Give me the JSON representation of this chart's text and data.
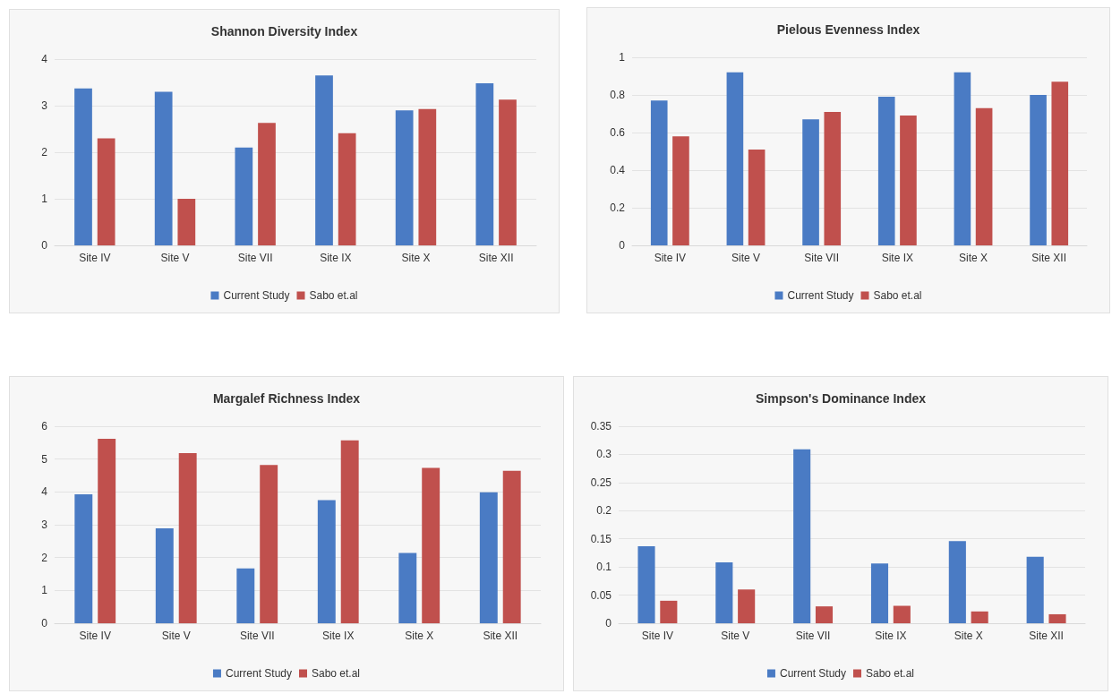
{
  "chart_data": [
    {
      "type": "bar",
      "title": "Shannon Diversity Index",
      "categories": [
        "Site IV",
        "Site V",
        "Site VII",
        "Site IX",
        "Site X",
        "Site XII"
      ],
      "series": [
        {
          "name": "Current Study",
          "color": "#4a7bc4",
          "values": [
            3.37,
            3.3,
            2.1,
            3.65,
            2.9,
            3.48
          ]
        },
        {
          "name": "Sabo et.al",
          "color": "#c0504d",
          "values": [
            2.3,
            1.0,
            2.63,
            2.41,
            2.93,
            3.13
          ]
        }
      ],
      "ylim": [
        0,
        4
      ],
      "yticks": [
        0,
        1,
        2,
        3,
        4
      ],
      "grid": "y",
      "legend": "bottom"
    },
    {
      "type": "bar",
      "title": "Pielous Evenness Index",
      "categories": [
        "Site IV",
        "Site V",
        "Site VII",
        "Site IX",
        "Site X",
        "Site XII"
      ],
      "series": [
        {
          "name": "Current Study",
          "color": "#4a7bc4",
          "values": [
            0.77,
            0.92,
            0.67,
            0.79,
            0.92,
            0.8
          ]
        },
        {
          "name": "Sabo et.al",
          "color": "#c0504d",
          "values": [
            0.58,
            0.51,
            0.71,
            0.69,
            0.73,
            0.87
          ]
        }
      ],
      "ylim": [
        0,
        1
      ],
      "yticks": [
        0,
        0.2,
        0.4,
        0.6,
        0.8,
        1
      ],
      "grid": "y",
      "legend": "bottom"
    },
    {
      "type": "bar",
      "title": "Margalef Richness Index",
      "categories": [
        "Site IV",
        "Site V",
        "Site VII",
        "Site IX",
        "Site X",
        "Site XII"
      ],
      "series": [
        {
          "name": "Current Study",
          "color": "#4a7bc4",
          "values": [
            3.93,
            2.89,
            1.67,
            3.75,
            2.14,
            3.99
          ]
        },
        {
          "name": "Sabo et.al",
          "color": "#c0504d",
          "values": [
            5.62,
            5.18,
            4.82,
            5.57,
            4.73,
            4.64
          ]
        }
      ],
      "ylim": [
        0,
        6
      ],
      "yticks": [
        0,
        1,
        2,
        3,
        4,
        5,
        6
      ],
      "grid": "y",
      "legend": "bottom"
    },
    {
      "type": "bar",
      "title": "Simpson's Dominance Index",
      "categories": [
        "Site IV",
        "Site V",
        "Site VII",
        "Site IX",
        "Site X",
        "Site XII"
      ],
      "series": [
        {
          "name": "Current Study",
          "color": "#4a7bc4",
          "values": [
            0.137,
            0.108,
            0.309,
            0.106,
            0.146,
            0.118
          ]
        },
        {
          "name": "Sabo et.al",
          "color": "#c0504d",
          "values": [
            0.04,
            0.06,
            0.03,
            0.031,
            0.021,
            0.016
          ]
        }
      ],
      "ylim": [
        0,
        0.35
      ],
      "yticks": [
        0,
        0.05,
        0.1,
        0.15,
        0.2,
        0.25,
        0.3,
        0.35
      ],
      "grid": "y",
      "legend": "bottom"
    }
  ]
}
